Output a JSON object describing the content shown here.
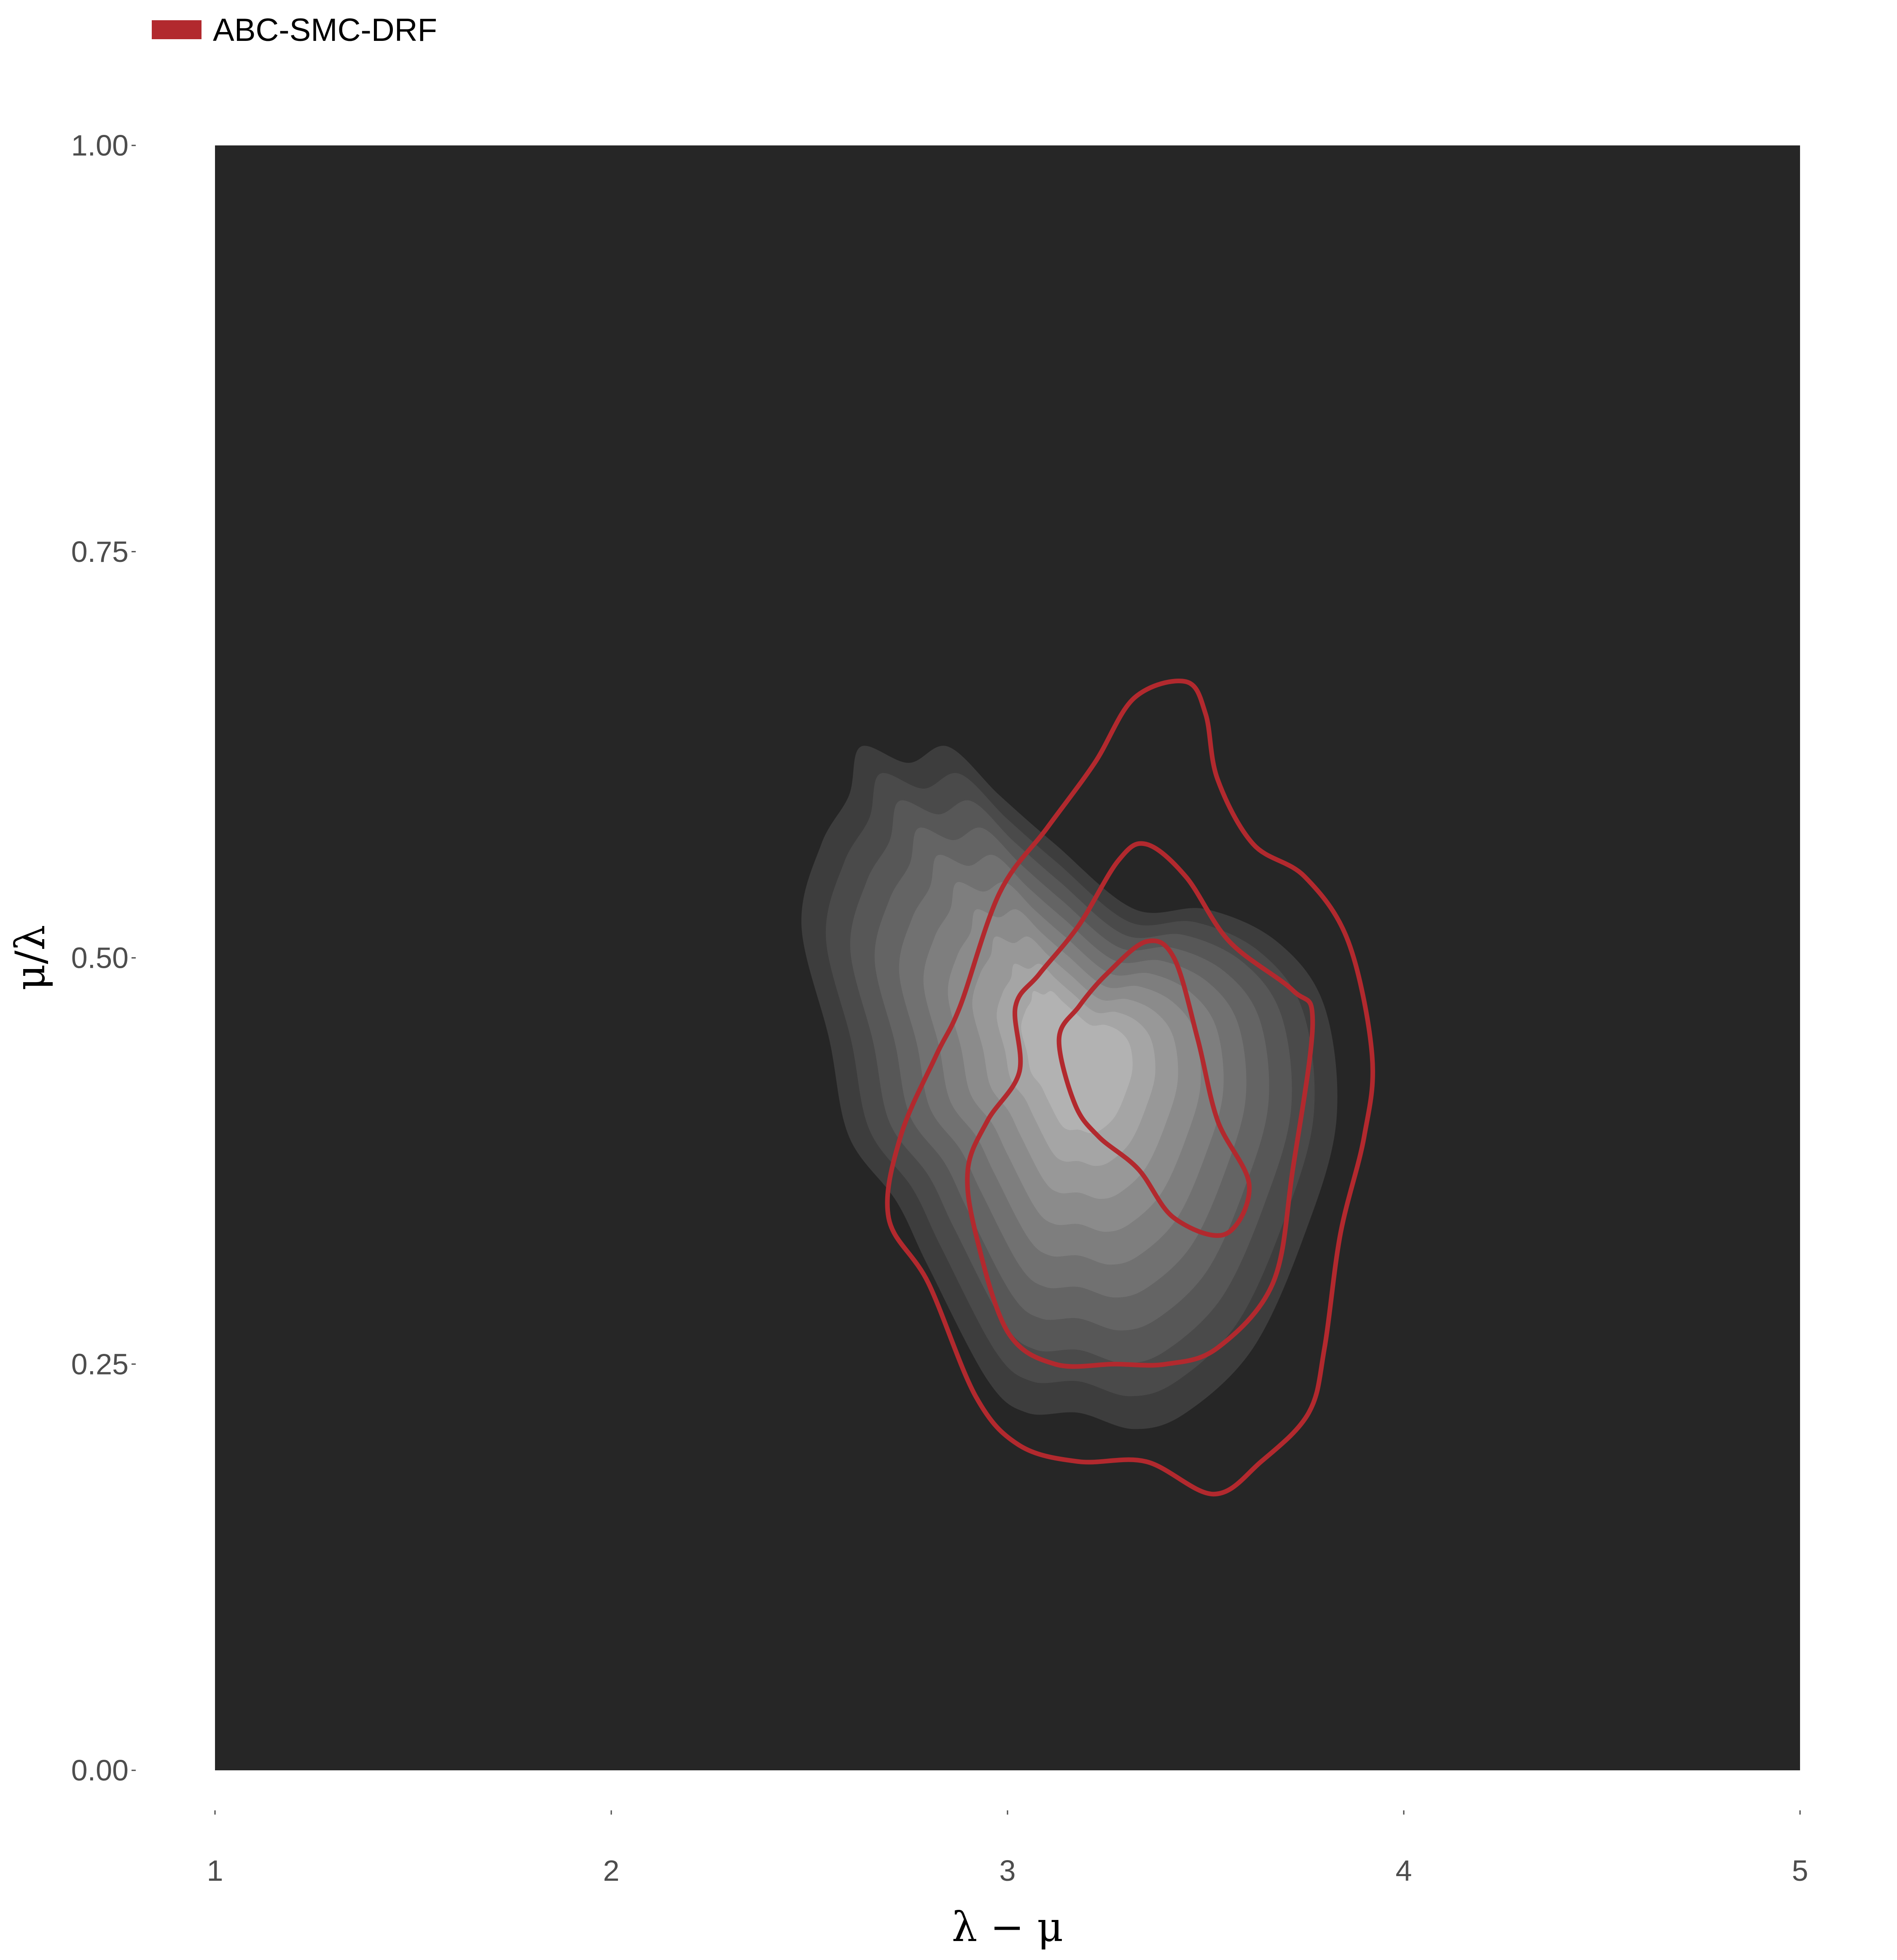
{
  "chart_data": {
    "type": "contour",
    "title": "",
    "xlabel": "λ − μ",
    "ylabel": "μ/λ",
    "xlim": [
      1,
      5
    ],
    "ylim": [
      0,
      1
    ],
    "xticks": [
      "1",
      "2",
      "3",
      "4",
      "5"
    ],
    "yticks": [
      "0.00",
      "0.25",
      "0.50",
      "0.75",
      "1.00"
    ],
    "grid": false,
    "legend": {
      "position": "top-left",
      "entries": [
        "ABC-SMC-DRF"
      ]
    },
    "colors": {
      "panel_background": "#262626",
      "density_fill_levels": [
        "#3d3d3d",
        "#4a4a4a",
        "#575757",
        "#646464",
        "#717171",
        "#7e7e7e",
        "#8b8b8b",
        "#989898",
        "#a5a5a5",
        "#b2b2b2"
      ],
      "abc_smc_drf": "#b2292e"
    },
    "series": [
      {
        "name": "",
        "kind": "filled-density-contours",
        "center": [
          3.18,
          0.44
        ],
        "levels": 10,
        "outer_boundary": [
          [
            2.63,
            0.63
          ],
          [
            2.75,
            0.62
          ],
          [
            2.85,
            0.63
          ],
          [
            2.98,
            0.6
          ],
          [
            3.12,
            0.57
          ],
          [
            3.32,
            0.53
          ],
          [
            3.5,
            0.53
          ],
          [
            3.68,
            0.51
          ],
          [
            3.8,
            0.47
          ],
          [
            3.83,
            0.4
          ],
          [
            3.75,
            0.33
          ],
          [
            3.62,
            0.26
          ],
          [
            3.45,
            0.22
          ],
          [
            3.32,
            0.21
          ],
          [
            3.18,
            0.22
          ],
          [
            3.05,
            0.22
          ],
          [
            2.95,
            0.24
          ],
          [
            2.8,
            0.31
          ],
          [
            2.72,
            0.35
          ],
          [
            2.6,
            0.39
          ],
          [
            2.55,
            0.45
          ],
          [
            2.48,
            0.52
          ],
          [
            2.53,
            0.57
          ],
          [
            2.6,
            0.6
          ]
        ]
      },
      {
        "name": "ABC-SMC-DRF",
        "kind": "contour-lines",
        "lines": [
          [
            [
              3.45,
              0.67
            ],
            [
              3.5,
              0.65
            ],
            [
              3.53,
              0.61
            ],
            [
              3.62,
              0.57
            ],
            [
              3.75,
              0.55
            ],
            [
              3.86,
              0.51
            ],
            [
              3.92,
              0.44
            ],
            [
              3.9,
              0.39
            ],
            [
              3.84,
              0.33
            ],
            [
              3.8,
              0.26
            ],
            [
              3.76,
              0.22
            ],
            [
              3.64,
              0.19
            ],
            [
              3.52,
              0.17
            ],
            [
              3.35,
              0.19
            ],
            [
              3.18,
              0.19
            ],
            [
              3.03,
              0.2
            ],
            [
              2.92,
              0.23
            ],
            [
              2.8,
              0.3
            ],
            [
              2.7,
              0.34
            ],
            [
              2.73,
              0.39
            ],
            [
              2.82,
              0.44
            ],
            [
              2.88,
              0.47
            ],
            [
              2.98,
              0.54
            ],
            [
              3.1,
              0.58
            ],
            [
              3.22,
              0.62
            ],
            [
              3.32,
              0.66
            ]
          ],
          [
            [
              3.35,
              0.57
            ],
            [
              3.45,
              0.55
            ],
            [
              3.56,
              0.51
            ],
            [
              3.72,
              0.48
            ],
            [
              3.77,
              0.46
            ],
            [
              3.72,
              0.37
            ],
            [
              3.67,
              0.3
            ],
            [
              3.53,
              0.26
            ],
            [
              3.4,
              0.25
            ],
            [
              3.27,
              0.25
            ],
            [
              3.12,
              0.25
            ],
            [
              3.0,
              0.27
            ],
            [
              2.92,
              0.33
            ],
            [
              2.9,
              0.37
            ],
            [
              2.95,
              0.4
            ],
            [
              3.03,
              0.43
            ],
            [
              3.02,
              0.47
            ],
            [
              3.08,
              0.49
            ],
            [
              3.18,
              0.52
            ],
            [
              3.28,
              0.56
            ]
          ],
          [
            [
              3.35,
              0.51
            ],
            [
              3.42,
              0.5
            ],
            [
              3.48,
              0.45
            ],
            [
              3.53,
              0.4
            ],
            [
              3.61,
              0.36
            ],
            [
              3.55,
              0.33
            ],
            [
              3.42,
              0.34
            ],
            [
              3.33,
              0.37
            ],
            [
              3.23,
              0.39
            ],
            [
              3.17,
              0.41
            ],
            [
              3.13,
              0.45
            ],
            [
              3.18,
              0.47
            ],
            [
              3.25,
              0.49
            ]
          ]
        ]
      }
    ]
  }
}
